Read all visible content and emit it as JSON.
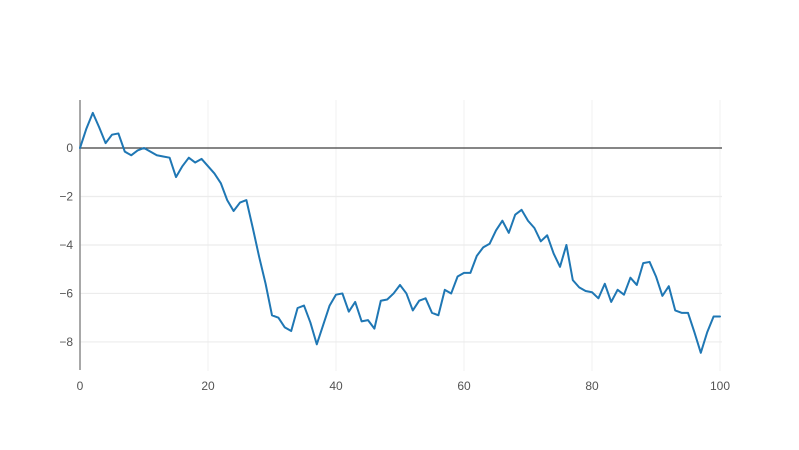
{
  "chart_data": {
    "type": "line",
    "title": "",
    "xlabel": "",
    "ylabel": "",
    "x_start": 0,
    "x_step": 1,
    "values": [
      0.0,
      0.8,
      1.45,
      0.85,
      0.2,
      0.55,
      0.6,
      -0.15,
      -0.3,
      -0.1,
      0.0,
      -0.15,
      -0.3,
      -0.35,
      -0.4,
      -1.2,
      -0.75,
      -0.4,
      -0.6,
      -0.45,
      -0.75,
      -1.05,
      -1.45,
      -2.15,
      -2.6,
      -2.25,
      -2.15,
      -3.3,
      -4.5,
      -5.6,
      -6.9,
      -7.0,
      -7.4,
      -7.55,
      -6.6,
      -6.5,
      -7.2,
      -8.1,
      -7.3,
      -6.5,
      -6.05,
      -6.0,
      -6.75,
      -6.35,
      -7.15,
      -7.1,
      -7.45,
      -6.3,
      -6.25,
      -6.0,
      -5.65,
      -6.0,
      -6.7,
      -6.3,
      -6.2,
      -6.8,
      -6.9,
      -5.85,
      -6.0,
      -5.3,
      -5.15,
      -5.15,
      -4.45,
      -4.1,
      -3.95,
      -3.4,
      -3.0,
      -3.5,
      -2.75,
      -2.55,
      -3.0,
      -3.3,
      -3.85,
      -3.6,
      -4.35,
      -4.9,
      -4.0,
      -5.45,
      -5.75,
      -5.9,
      -5.95,
      -6.2,
      -5.6,
      -6.35,
      -5.85,
      -6.05,
      -5.35,
      -5.65,
      -4.75,
      -4.7,
      -5.3,
      -6.1,
      -5.7,
      -6.7,
      -6.8,
      -6.8,
      -7.6,
      -8.45,
      -7.6,
      -6.95,
      -6.95
    ],
    "xlim": [
      0,
      100
    ],
    "ylim": [
      -9.24,
      1.98
    ],
    "x_ticks": [
      0,
      20,
      40,
      60,
      80,
      100
    ],
    "x_tick_labels": [
      "0",
      "20",
      "40",
      "60",
      "80",
      "100"
    ],
    "y_ticks": [
      0,
      -2,
      -4,
      -6,
      -8
    ],
    "y_tick_labels": [
      "0",
      "−2",
      "−4",
      "−6",
      "−8"
    ],
    "grid": true,
    "legend": false,
    "zero_line": true,
    "colors": {
      "line": "#1f77b4",
      "zero_line": "#3f3f3f",
      "y_axis_line": "#8c8c8c",
      "h_gridline": "#ececec",
      "v_gridline": "#f3f3f3",
      "tick_label": "#545454",
      "background": "#ffffff"
    }
  }
}
